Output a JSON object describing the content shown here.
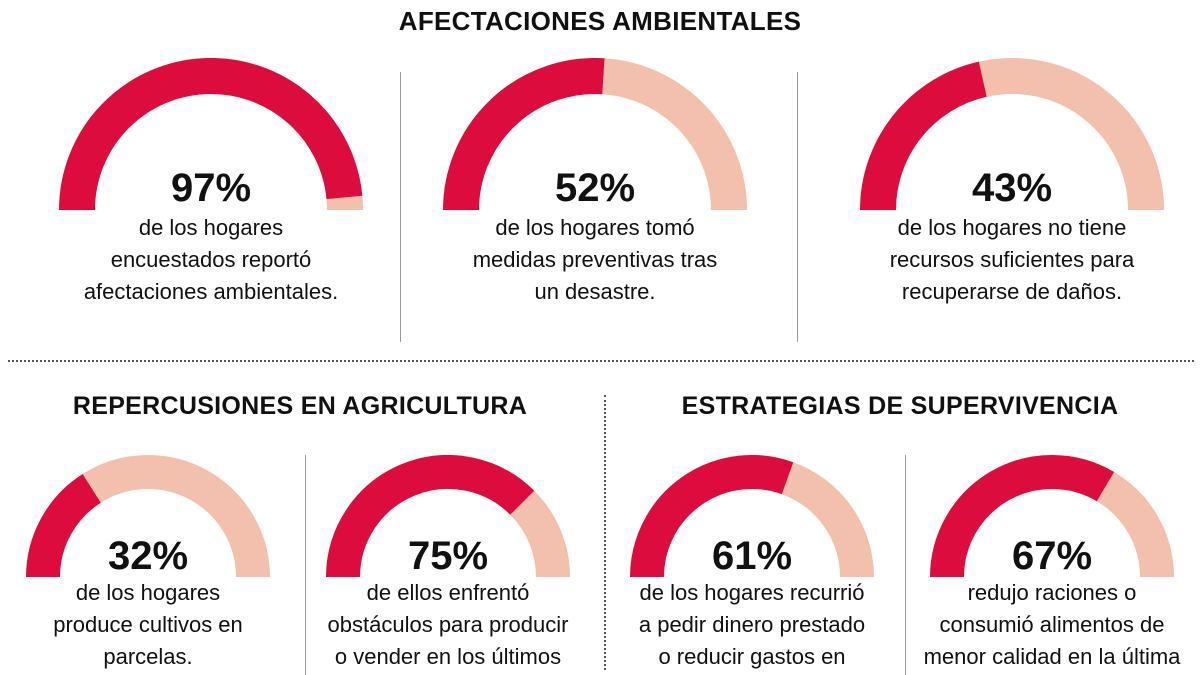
{
  "colors": {
    "filled": "#dc0d3d",
    "remaining": "#f2c0ad"
  },
  "sections": {
    "environmental": {
      "title": "AFECTACIONES AMBIENTALES"
    },
    "agriculture": {
      "title": "REPERCUSIONES EN AGRICULTURA"
    },
    "survival": {
      "title": "ESTRATEGIAS DE SUPERVIVENCIA"
    }
  },
  "chart_data": [
    {
      "type": "gauge",
      "section": "AFECTACIONES AMBIENTALES",
      "value": 97,
      "max": 100,
      "label": "97%",
      "description": [
        "de los hogares",
        "encuestados reportó",
        "afectaciones ambientales."
      ]
    },
    {
      "type": "gauge",
      "section": "AFECTACIONES AMBIENTALES",
      "value": 52,
      "max": 100,
      "label": "52%",
      "description": [
        "de los hogares tomó",
        "medidas preventivas tras",
        "un desastre."
      ]
    },
    {
      "type": "gauge",
      "section": "AFECTACIONES AMBIENTALES",
      "value": 43,
      "max": 100,
      "label": "43%",
      "description": [
        "de los hogares no tiene",
        "recursos suficientes para",
        "recuperarse de daños."
      ]
    },
    {
      "type": "gauge",
      "section": "REPERCUSIONES EN AGRICULTURA",
      "value": 32,
      "max": 100,
      "label": "32%",
      "description": [
        "de los hogares",
        "produce cultivos en",
        "parcelas."
      ]
    },
    {
      "type": "gauge",
      "section": "REPERCUSIONES EN AGRICULTURA",
      "value": 75,
      "max": 100,
      "label": "75%",
      "description": [
        "de ellos enfrentó",
        "obstáculos para producir",
        "o vender en los últimos"
      ]
    },
    {
      "type": "gauge",
      "section": "ESTRATEGIAS DE SUPERVIVENCIA",
      "value": 61,
      "max": 100,
      "label": "61%",
      "description": [
        "de los hogares recurrió",
        "a pedir dinero prestado",
        "o reducir gastos en"
      ]
    },
    {
      "type": "gauge",
      "section": "ESTRATEGIAS DE SUPERVIVENCIA",
      "value": 67,
      "max": 100,
      "label": "67%",
      "description": [
        "redujo raciones o",
        "consumió alimentos de",
        "menor calidad en la última"
      ]
    }
  ]
}
